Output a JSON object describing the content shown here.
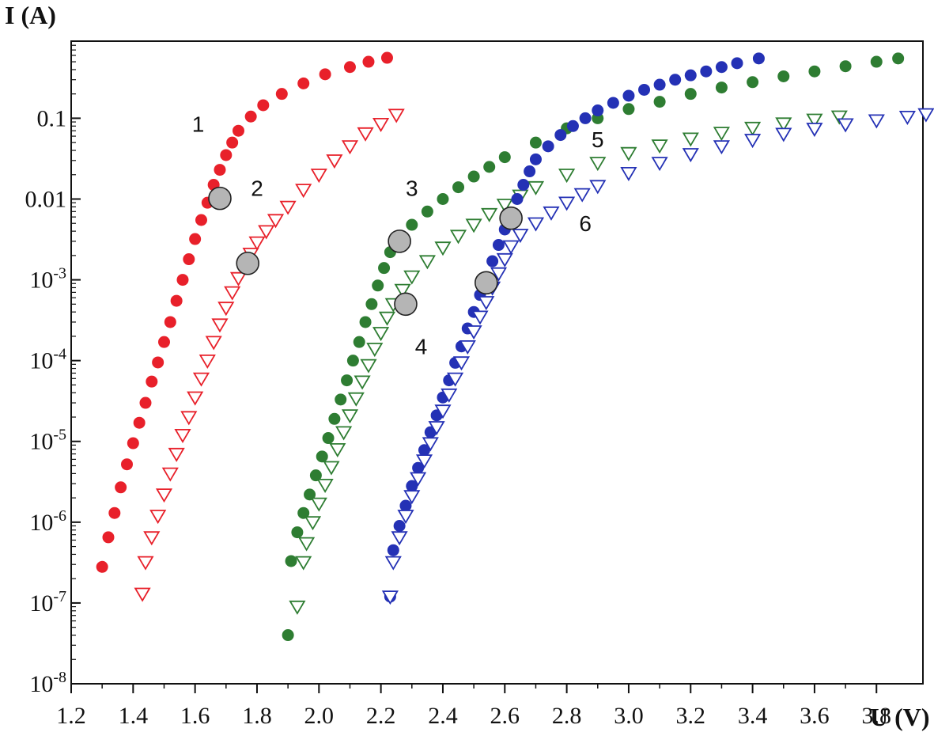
{
  "chart_data": {
    "type": "scatter",
    "title": "",
    "xlabel": "U (V)",
    "ylabel": "I (A)",
    "x_scale": "linear",
    "y_scale": "log",
    "xlim": [
      1.2,
      3.95
    ],
    "ylim": [
      1e-08,
      0.9
    ],
    "grid": false,
    "x_ticks": [
      {
        "value": 1.2,
        "label": "1.2"
      },
      {
        "value": 1.4,
        "label": "1.4"
      },
      {
        "value": 1.6,
        "label": "1.6"
      },
      {
        "value": 1.8,
        "label": "1.8"
      },
      {
        "value": 2.0,
        "label": "2.0"
      },
      {
        "value": 2.2,
        "label": "2.2"
      },
      {
        "value": 2.4,
        "label": "2.4"
      },
      {
        "value": 2.6,
        "label": "2.6"
      },
      {
        "value": 2.8,
        "label": "2.8"
      },
      {
        "value": 3.0,
        "label": "3.0"
      },
      {
        "value": 3.2,
        "label": "3.2"
      },
      {
        "value": 3.4,
        "label": "3.4"
      },
      {
        "value": 3.6,
        "label": "3.6"
      },
      {
        "value": 3.8,
        "label": "3.8"
      }
    ],
    "y_ticks": [
      {
        "value": 0.1,
        "base": "0.1",
        "exp": ""
      },
      {
        "value": 0.01,
        "base": "0.01",
        "exp": ""
      },
      {
        "value": 0.001,
        "base": "10",
        "exp": "-3"
      },
      {
        "value": 0.0001,
        "base": "10",
        "exp": "-4"
      },
      {
        "value": 1e-05,
        "base": "10",
        "exp": "-5"
      },
      {
        "value": 1e-06,
        "base": "10",
        "exp": "-6"
      },
      {
        "value": 1e-07,
        "base": "10",
        "exp": "-7"
      },
      {
        "value": 1e-08,
        "base": "10",
        "exp": "-8"
      }
    ],
    "series": [
      {
        "label": "1",
        "marker": "filled-circle",
        "color": "#e8202a",
        "points": [
          [
            1.3,
            2.8e-07
          ],
          [
            1.32,
            6.5e-07
          ],
          [
            1.34,
            1.3e-06
          ],
          [
            1.36,
            2.7e-06
          ],
          [
            1.38,
            5.2e-06
          ],
          [
            1.4,
            9.5e-06
          ],
          [
            1.42,
            1.7e-05
          ],
          [
            1.44,
            3e-05
          ],
          [
            1.46,
            5.5e-05
          ],
          [
            1.48,
            9.5e-05
          ],
          [
            1.5,
            0.00017
          ],
          [
            1.52,
            0.0003
          ],
          [
            1.54,
            0.00055
          ],
          [
            1.56,
            0.001
          ],
          [
            1.58,
            0.0018
          ],
          [
            1.6,
            0.0032
          ],
          [
            1.62,
            0.0055
          ],
          [
            1.64,
            0.009
          ],
          [
            1.66,
            0.015
          ],
          [
            1.68,
            0.023
          ],
          [
            1.7,
            0.035
          ],
          [
            1.72,
            0.05
          ],
          [
            1.74,
            0.07
          ],
          [
            1.78,
            0.105
          ],
          [
            1.82,
            0.145
          ],
          [
            1.88,
            0.2
          ],
          [
            1.95,
            0.27
          ],
          [
            2.02,
            0.35
          ],
          [
            2.1,
            0.43
          ],
          [
            2.16,
            0.5
          ],
          [
            2.22,
            0.56
          ]
        ]
      },
      {
        "label": "2",
        "marker": "open-triangle-down",
        "color": "#e8202a",
        "points": [
          [
            1.43,
            1.3e-07
          ],
          [
            1.44,
            3.2e-07
          ],
          [
            1.46,
            6.5e-07
          ],
          [
            1.48,
            1.2e-06
          ],
          [
            1.5,
            2.2e-06
          ],
          [
            1.52,
            4e-06
          ],
          [
            1.54,
            7e-06
          ],
          [
            1.56,
            1.2e-05
          ],
          [
            1.58,
            2e-05
          ],
          [
            1.6,
            3.5e-05
          ],
          [
            1.62,
            6e-05
          ],
          [
            1.64,
            0.0001
          ],
          [
            1.66,
            0.00017
          ],
          [
            1.68,
            0.00028
          ],
          [
            1.7,
            0.00045
          ],
          [
            1.72,
            0.0007
          ],
          [
            1.74,
            0.00105
          ],
          [
            1.76,
            0.0015
          ],
          [
            1.78,
            0.0021
          ],
          [
            1.8,
            0.0029
          ],
          [
            1.83,
            0.004
          ],
          [
            1.86,
            0.0055
          ],
          [
            1.9,
            0.008
          ],
          [
            1.95,
            0.013
          ],
          [
            2.0,
            0.02
          ],
          [
            2.05,
            0.03
          ],
          [
            2.1,
            0.045
          ],
          [
            2.15,
            0.065
          ],
          [
            2.2,
            0.085
          ],
          [
            2.25,
            0.11
          ]
        ]
      },
      {
        "label": "3",
        "marker": "filled-circle",
        "color": "#2e7d32",
        "points": [
          [
            1.9,
            4e-08
          ],
          [
            1.91,
            3.3e-07
          ],
          [
            1.93,
            7.5e-07
          ],
          [
            1.95,
            1.3e-06
          ],
          [
            1.97,
            2.2e-06
          ],
          [
            1.99,
            3.8e-06
          ],
          [
            2.01,
            6.5e-06
          ],
          [
            2.03,
            1.1e-05
          ],
          [
            2.05,
            1.9e-05
          ],
          [
            2.07,
            3.3e-05
          ],
          [
            2.09,
            5.7e-05
          ],
          [
            2.11,
            0.0001
          ],
          [
            2.13,
            0.00017
          ],
          [
            2.15,
            0.0003
          ],
          [
            2.17,
            0.0005
          ],
          [
            2.19,
            0.00085
          ],
          [
            2.21,
            0.0014
          ],
          [
            2.23,
            0.0022
          ],
          [
            2.26,
            0.0032
          ],
          [
            2.3,
            0.0048
          ],
          [
            2.35,
            0.007
          ],
          [
            2.4,
            0.01
          ],
          [
            2.45,
            0.014
          ],
          [
            2.5,
            0.019
          ],
          [
            2.55,
            0.025
          ],
          [
            2.6,
            0.033
          ],
          [
            2.7,
            0.05
          ],
          [
            2.8,
            0.075
          ],
          [
            2.9,
            0.1
          ],
          [
            3.0,
            0.13
          ],
          [
            3.1,
            0.16
          ],
          [
            3.2,
            0.2
          ],
          [
            3.3,
            0.24
          ],
          [
            3.4,
            0.28
          ],
          [
            3.5,
            0.33
          ],
          [
            3.6,
            0.38
          ],
          [
            3.7,
            0.44
          ],
          [
            3.8,
            0.5
          ],
          [
            3.87,
            0.55
          ]
        ]
      },
      {
        "label": "4",
        "marker": "open-triangle-down",
        "color": "#2e7d32",
        "points": [
          [
            1.93,
            9e-08
          ],
          [
            1.95,
            3.2e-07
          ],
          [
            1.96,
            5.5e-07
          ],
          [
            1.98,
            1e-06
          ],
          [
            2.0,
            1.7e-06
          ],
          [
            2.02,
            2.9e-06
          ],
          [
            2.04,
            4.8e-06
          ],
          [
            2.06,
            8e-06
          ],
          [
            2.08,
            1.3e-05
          ],
          [
            2.1,
            2.1e-05
          ],
          [
            2.12,
            3.4e-05
          ],
          [
            2.14,
            5.5e-05
          ],
          [
            2.16,
            8.8e-05
          ],
          [
            2.18,
            0.00014
          ],
          [
            2.2,
            0.00022
          ],
          [
            2.22,
            0.00034
          ],
          [
            2.24,
            0.0005
          ],
          [
            2.27,
            0.00075
          ],
          [
            2.3,
            0.0011
          ],
          [
            2.35,
            0.0017
          ],
          [
            2.4,
            0.0025
          ],
          [
            2.45,
            0.0035
          ],
          [
            2.5,
            0.0048
          ],
          [
            2.55,
            0.0065
          ],
          [
            2.6,
            0.0085
          ],
          [
            2.65,
            0.011
          ],
          [
            2.7,
            0.014
          ],
          [
            2.8,
            0.02
          ],
          [
            2.9,
            0.028
          ],
          [
            3.0,
            0.037
          ],
          [
            3.1,
            0.046
          ],
          [
            3.2,
            0.056
          ],
          [
            3.3,
            0.066
          ],
          [
            3.4,
            0.076
          ],
          [
            3.5,
            0.086
          ],
          [
            3.6,
            0.096
          ],
          [
            3.68,
            0.105
          ]
        ]
      },
      {
        "label": "5",
        "marker": "filled-circle",
        "color": "#2431b5",
        "points": [
          [
            2.23,
            1.2e-07
          ],
          [
            2.24,
            4.5e-07
          ],
          [
            2.26,
            9e-07
          ],
          [
            2.28,
            1.6e-06
          ],
          [
            2.3,
            2.8e-06
          ],
          [
            2.32,
            4.7e-06
          ],
          [
            2.34,
            7.8e-06
          ],
          [
            2.36,
            1.3e-05
          ],
          [
            2.38,
            2.1e-05
          ],
          [
            2.4,
            3.5e-05
          ],
          [
            2.42,
            5.7e-05
          ],
          [
            2.44,
            9.4e-05
          ],
          [
            2.46,
            0.00015
          ],
          [
            2.48,
            0.00025
          ],
          [
            2.5,
            0.0004
          ],
          [
            2.52,
            0.00065
          ],
          [
            2.54,
            0.00105
          ],
          [
            2.56,
            0.0017
          ],
          [
            2.58,
            0.0027
          ],
          [
            2.6,
            0.0042
          ],
          [
            2.62,
            0.0065
          ],
          [
            2.64,
            0.01
          ],
          [
            2.66,
            0.015
          ],
          [
            2.68,
            0.022
          ],
          [
            2.7,
            0.031
          ],
          [
            2.74,
            0.045
          ],
          [
            2.78,
            0.062
          ],
          [
            2.82,
            0.08
          ],
          [
            2.86,
            0.1
          ],
          [
            2.9,
            0.125
          ],
          [
            2.95,
            0.155
          ],
          [
            3.0,
            0.19
          ],
          [
            3.05,
            0.225
          ],
          [
            3.1,
            0.26
          ],
          [
            3.15,
            0.3
          ],
          [
            3.2,
            0.34
          ],
          [
            3.25,
            0.38
          ],
          [
            3.3,
            0.43
          ],
          [
            3.35,
            0.48
          ],
          [
            3.42,
            0.55
          ]
        ]
      },
      {
        "label": "6",
        "marker": "open-triangle-down",
        "color": "#2431b5",
        "points": [
          [
            2.23,
            1.2e-07
          ],
          [
            2.24,
            3.2e-07
          ],
          [
            2.26,
            6.5e-07
          ],
          [
            2.28,
            1.2e-06
          ],
          [
            2.3,
            2.1e-06
          ],
          [
            2.32,
            3.5e-06
          ],
          [
            2.34,
            5.8e-06
          ],
          [
            2.36,
            9.5e-06
          ],
          [
            2.38,
            1.5e-05
          ],
          [
            2.4,
            2.4e-05
          ],
          [
            2.42,
            3.8e-05
          ],
          [
            2.44,
            6e-05
          ],
          [
            2.46,
            9.5e-05
          ],
          [
            2.48,
            0.00015
          ],
          [
            2.5,
            0.00023
          ],
          [
            2.52,
            0.00035
          ],
          [
            2.54,
            0.00053
          ],
          [
            2.56,
            0.0008
          ],
          [
            2.58,
            0.0012
          ],
          [
            2.6,
            0.0018
          ],
          [
            2.62,
            0.0026
          ],
          [
            2.65,
            0.0036
          ],
          [
            2.7,
            0.005
          ],
          [
            2.75,
            0.0068
          ],
          [
            2.8,
            0.009
          ],
          [
            2.85,
            0.0115
          ],
          [
            2.9,
            0.0145
          ],
          [
            3.0,
            0.021
          ],
          [
            3.1,
            0.028
          ],
          [
            3.2,
            0.036
          ],
          [
            3.3,
            0.045
          ],
          [
            3.4,
            0.054
          ],
          [
            3.5,
            0.064
          ],
          [
            3.6,
            0.074
          ],
          [
            3.7,
            0.084
          ],
          [
            3.8,
            0.094
          ],
          [
            3.9,
            0.104
          ],
          [
            3.96,
            0.112
          ]
        ]
      }
    ],
    "annotations": [
      {
        "text": "1",
        "x": 1.61,
        "y": 0.068
      },
      {
        "text": "2",
        "x": 1.8,
        "y": 0.011
      },
      {
        "text": "3",
        "x": 2.3,
        "y": 0.011
      },
      {
        "text": "4",
        "x": 2.33,
        "y": 0.00012
      },
      {
        "text": "5",
        "x": 2.9,
        "y": 0.044
      },
      {
        "text": "6",
        "x": 2.86,
        "y": 0.004
      }
    ],
    "markers": [
      {
        "x": 1.68,
        "y": 0.0102
      },
      {
        "x": 1.77,
        "y": 0.0016
      },
      {
        "x": 2.26,
        "y": 0.003
      },
      {
        "x": 2.28,
        "y": 0.0005
      },
      {
        "x": 2.54,
        "y": 0.00092
      },
      {
        "x": 2.62,
        "y": 0.0058
      }
    ],
    "marker_color": "#b5b5b5"
  }
}
